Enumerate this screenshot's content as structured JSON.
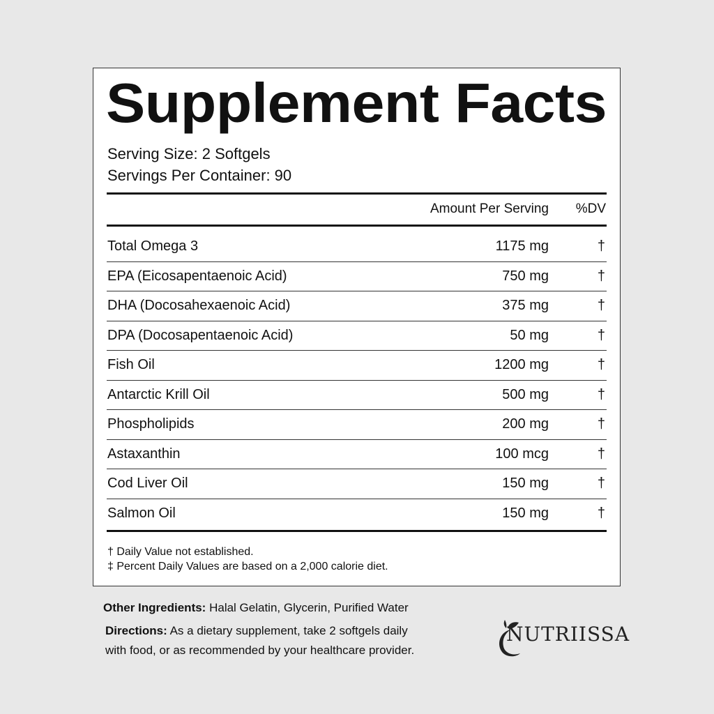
{
  "title": "Supplement Facts",
  "serving_size": "Serving Size: 2 Softgels",
  "servings_per_container": "Servings Per Container: 90",
  "header": {
    "amount": "Amount Per Serving",
    "dv": "%DV"
  },
  "rows": [
    {
      "name": "Total Omega 3",
      "amount": "1175 mg",
      "dv": "†"
    },
    {
      "name": "EPA (Eicosapentaenoic Acid)",
      "amount": "750 mg",
      "dv": "†"
    },
    {
      "name": "DHA (Docosahexaenoic Acid)",
      "amount": "375 mg",
      "dv": "†"
    },
    {
      "name": "DPA (Docosapentaenoic Acid)",
      "amount": "50 mg",
      "dv": "†"
    },
    {
      "name": "Fish Oil",
      "amount": "1200 mg",
      "dv": "†"
    },
    {
      "name": "Antarctic Krill Oil",
      "amount": "500 mg",
      "dv": "†"
    },
    {
      "name": "Phospholipids",
      "amount": "200 mg",
      "dv": "†"
    },
    {
      "name": "Astaxanthin",
      "amount": "100 mcg",
      "dv": "†"
    },
    {
      "name": "Cod Liver Oil",
      "amount": "150 mg",
      "dv": "†"
    },
    {
      "name": "Salmon Oil",
      "amount": "150 mg",
      "dv": "†"
    }
  ],
  "footnotes": [
    "† Daily Value not established.",
    "‡ Percent Daily Values are based on a 2,000 calorie diet."
  ],
  "other_ingredients": {
    "label": "Other Ingredients:",
    "text": " Halal Gelatin, Glycerin, Purified Water"
  },
  "directions": {
    "label": "Directions:",
    "text": " As a dietary supplement, take 2 softgels daily",
    "text2": "with food, or as recommended by your healthcare provider."
  },
  "brand": "NUTRIISSA"
}
